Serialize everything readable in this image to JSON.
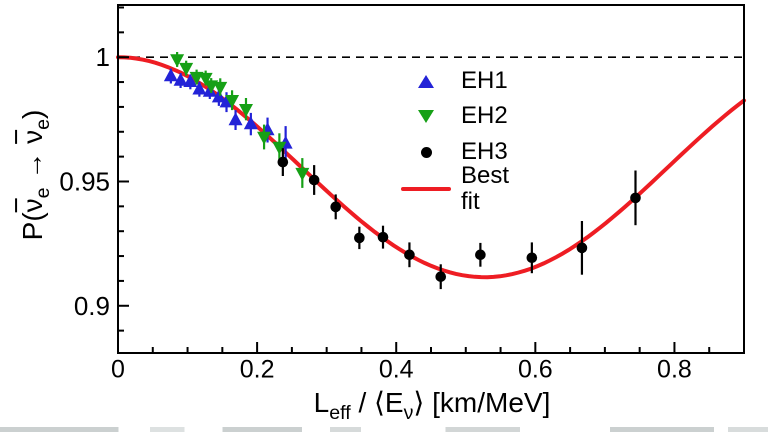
{
  "chart_data": {
    "type": "scatter",
    "title": "",
    "xlabel": "L_eff / ⟨E_ν⟩ [km/MeV]",
    "xlabel_parts": [
      {
        "t": "L"
      },
      {
        "t": "eff",
        "sub": true
      },
      {
        "t": " / ⟨E"
      },
      {
        "t": "ν",
        "sub": true
      },
      {
        "t": "⟩ [km/MeV]"
      }
    ],
    "ylabel": "P(ν̄e → ν̄e)",
    "ylabel_parts": [
      {
        "t": "P("
      },
      {
        "t": "ν",
        "overline": true
      },
      {
        "t": "e",
        "sub": true
      },
      {
        "t": " → "
      },
      {
        "t": "ν",
        "overline": true
      },
      {
        "t": "e",
        "sub": true
      },
      {
        "t": ")"
      }
    ],
    "xlim": [
      0,
      0.9
    ],
    "ylim": [
      0.881,
      1.021
    ],
    "grid": false,
    "x_ticks": {
      "major": [
        0,
        0.2,
        0.4,
        0.6,
        0.8
      ],
      "labels": [
        "0",
        "0.2",
        "0.4",
        "0.6",
        "0.8"
      ],
      "minor_step": 0.05
    },
    "y_ticks": {
      "major": [
        0.9,
        0.95,
        1.0
      ],
      "labels": [
        "0.9",
        "0.95",
        "1"
      ],
      "minor_step": 0.01
    },
    "reference_line": {
      "y": 1.0,
      "style": "dashed",
      "color": "#000000"
    },
    "legend": {
      "position": "upper-center-right",
      "entries": [
        {
          "label": "EH1",
          "marker": "triangle-up",
          "color": "#2323d7"
        },
        {
          "label": "EH2",
          "marker": "triangle-down",
          "color": "#16a016"
        },
        {
          "label": "EH3",
          "marker": "circle",
          "color": "#000000"
        },
        {
          "label": "Best fit",
          "marker": "line",
          "color": "#ee1d23"
        }
      ]
    },
    "series": [
      {
        "name": "EH1",
        "marker": "triangle-up",
        "color": "#2323d7",
        "points_format": [
          "L_eff/<E> (km/MeV)",
          "P survival",
          "error +/-"
        ],
        "points": [
          [
            0.076,
            0.9924,
            0.003
          ],
          [
            0.09,
            0.9906,
            0.003
          ],
          [
            0.104,
            0.9901,
            0.003
          ],
          [
            0.117,
            0.9871,
            0.003
          ],
          [
            0.132,
            0.9862,
            0.003
          ],
          [
            0.145,
            0.9839,
            0.0035
          ],
          [
            0.156,
            0.9819,
            0.004
          ],
          [
            0.169,
            0.9747,
            0.004
          ],
          [
            0.191,
            0.9731,
            0.0045
          ],
          [
            0.215,
            0.9707,
            0.005
          ],
          [
            0.241,
            0.9653,
            0.007
          ]
        ]
      },
      {
        "name": "EH2",
        "marker": "triangle-down",
        "color": "#16a016",
        "points": [
          [
            0.085,
            0.9991,
            0.003
          ],
          [
            0.098,
            0.9956,
            0.003
          ],
          [
            0.113,
            0.992,
            0.003
          ],
          [
            0.126,
            0.9916,
            0.003
          ],
          [
            0.134,
            0.9886,
            0.003
          ],
          [
            0.147,
            0.988,
            0.0035
          ],
          [
            0.164,
            0.9827,
            0.004
          ],
          [
            0.184,
            0.9791,
            0.0045
          ],
          [
            0.21,
            0.9679,
            0.005
          ],
          [
            0.232,
            0.9639,
            0.0055
          ],
          [
            0.265,
            0.9534,
            0.006
          ]
        ]
      },
      {
        "name": "EH3",
        "marker": "circle",
        "color": "#000000",
        "points": [
          [
            0.237,
            0.9578,
            0.0056
          ],
          [
            0.282,
            0.9506,
            0.006
          ],
          [
            0.313,
            0.9398,
            0.005
          ],
          [
            0.347,
            0.9273,
            0.0045
          ],
          [
            0.381,
            0.9276,
            0.0046
          ],
          [
            0.419,
            0.9205,
            0.005
          ],
          [
            0.464,
            0.9117,
            0.005
          ],
          [
            0.521,
            0.9205,
            0.0048
          ],
          [
            0.595,
            0.9193,
            0.0062
          ],
          [
            0.667,
            0.9233,
            0.0108
          ],
          [
            0.744,
            0.9434,
            0.011
          ]
        ]
      }
    ],
    "best_fit": {
      "name": "Best fit",
      "color": "#ee1d23",
      "formula": "P(x) = 1 - A*sin^2(k*x)",
      "A": 0.0885,
      "k": 2.98,
      "x_range": [
        0,
        0.9
      ],
      "minimum": {
        "x": 0.527,
        "P": 0.9115
      }
    }
  }
}
